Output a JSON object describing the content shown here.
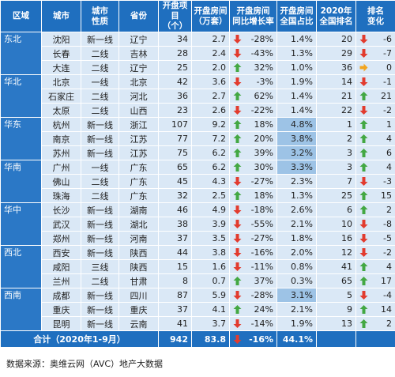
{
  "table": {
    "headers": [
      "区域",
      "城市",
      "城市\n性质",
      "省份",
      "开盘项目\n（个）",
      "开盘房间\n（万套）",
      "开盘房间\n同比增长率",
      "开盘房间\n全国占比",
      "2020年\n全国排名",
      "排名\n变化"
    ],
    "groups": [
      {
        "region": "东北",
        "rows": [
          [
            "沈阳",
            "新一线",
            "辽宁",
            "34",
            "2.7",
            "-28%",
            "1.4%",
            "20",
            "-6"
          ],
          [
            "长春",
            "二线",
            "吉林",
            "28",
            "2.4",
            "-43%",
            "1.3%",
            "29",
            "-7"
          ],
          [
            "大连",
            "二线",
            "辽宁",
            "25",
            "2.0",
            "32%",
            "1.0%",
            "36",
            "0"
          ]
        ]
      },
      {
        "region": "华北",
        "rows": [
          [
            "北京",
            "一线",
            "北京",
            "42",
            "3.6",
            "-3%",
            "1.9%",
            "14",
            "-1"
          ],
          [
            "石家庄",
            "二线",
            "河北",
            "36",
            "2.7",
            "62%",
            "1.4%",
            "21",
            "21"
          ],
          [
            "太原",
            "二线",
            "山西",
            "23",
            "2.6",
            "-22%",
            "1.4%",
            "22",
            "-2"
          ]
        ]
      },
      {
        "region": "华东",
        "rows": [
          [
            "杭州",
            "新一线",
            "浙江",
            "107",
            "9.2",
            "18%",
            "4.8%",
            "1",
            "1"
          ],
          [
            "南京",
            "新一线",
            "江苏",
            "77",
            "7.2",
            "20%",
            "3.8%",
            "2",
            "4"
          ],
          [
            "苏州",
            "新一线",
            "江苏",
            "75",
            "6.2",
            "39%",
            "3.2%",
            "3",
            "6"
          ]
        ]
      },
      {
        "region": "华南",
        "rows": [
          [
            "广州",
            "一线",
            "广东",
            "65",
            "6.2",
            "30%",
            "3.3%",
            "3",
            "4"
          ],
          [
            "佛山",
            "二线",
            "广东",
            "45",
            "4.3",
            "-27%",
            "2.3%",
            "7",
            "-3"
          ],
          [
            "珠海",
            "二线",
            "广东",
            "32",
            "2.5",
            "18%",
            "1.3%",
            "25",
            "15"
          ]
        ]
      },
      {
        "region": "华中",
        "rows": [
          [
            "长沙",
            "新一线",
            "湖南",
            "46",
            "4.9",
            "-18%",
            "2.6%",
            "6",
            "2"
          ],
          [
            "武汉",
            "新一线",
            "湖北",
            "38",
            "3.9",
            "-55%",
            "2.1%",
            "10",
            "-8"
          ],
          [
            "郑州",
            "新一线",
            "河南",
            "37",
            "3.5",
            "-27%",
            "1.8%",
            "16",
            "-5"
          ]
        ]
      },
      {
        "region": "西北",
        "rows": [
          [
            "西安",
            "新一线",
            "陕西",
            "44",
            "3.8",
            "-16%",
            "2.0%",
            "12",
            "-2"
          ],
          [
            "咸阳",
            "三线",
            "陕西",
            "15",
            "1.6",
            "-11%",
            "0.8%",
            "41",
            "4"
          ],
          [
            "兰州",
            "二线",
            "甘肃",
            "8",
            "0.7",
            "37%",
            "0.3%",
            "65",
            "17"
          ]
        ]
      },
      {
        "region": "西南",
        "rows": [
          [
            "成都",
            "新一线",
            "四川",
            "87",
            "5.9",
            "-28%",
            "3.1%",
            "5",
            "-4"
          ],
          [
            "重庆",
            "新一线",
            "重庆",
            "37",
            "4.1",
            "24%",
            "2.1%",
            "9",
            "14"
          ],
          [
            "昆明",
            "新一线",
            "云南",
            "41",
            "3.7",
            "-14%",
            "1.9%",
            "13",
            "2"
          ]
        ]
      }
    ],
    "total": {
      "label": "合计（2020年1-9月）",
      "values": [
        "942",
        "83.8",
        "-16%",
        "44.1%"
      ]
    }
  },
  "footer": "数据来源：奥维云网（AVC）地产大数据"
}
